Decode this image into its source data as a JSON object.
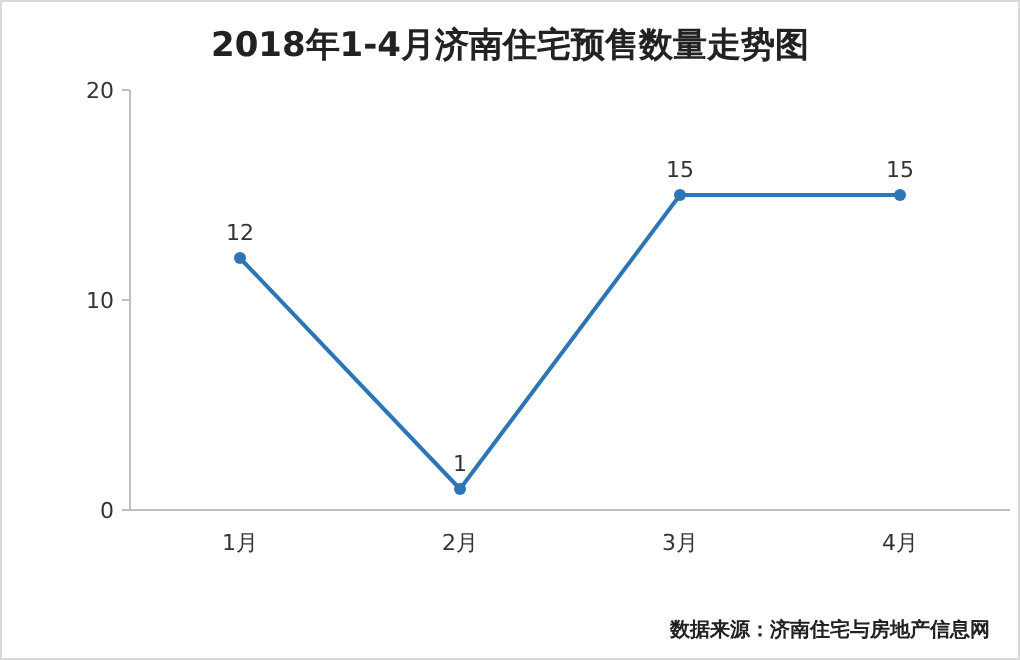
{
  "chart_data": {
    "type": "line",
    "title": "2018年1-4月济南住宅预售数量走势图",
    "categories": [
      "1月",
      "2月",
      "3月",
      "4月"
    ],
    "values": [
      12,
      1,
      15,
      15
    ],
    "color": "#2e75b6",
    "ylim": [
      0,
      20
    ],
    "yticks": [
      0,
      10,
      20
    ],
    "data_labels": true,
    "marker": "circle",
    "grid": false,
    "annotations": [
      "数据来源：济南住宅与房地产信息网"
    ]
  }
}
